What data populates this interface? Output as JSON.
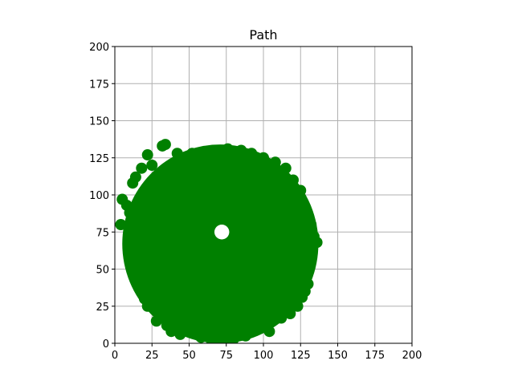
{
  "chart_data": {
    "type": "scatter",
    "title": "Path",
    "xlabel": "",
    "ylabel": "",
    "xlim": [
      0,
      200
    ],
    "ylim": [
      0,
      200
    ],
    "xticks": [
      "0",
      "25",
      "50",
      "75",
      "100",
      "125",
      "150",
      "175",
      "200"
    ],
    "yticks": [
      "0",
      "25",
      "50",
      "75",
      "100",
      "125",
      "150",
      "175",
      "200"
    ],
    "grid": true,
    "aspect": "equal",
    "series": [
      {
        "color": "#008000",
        "marker": "circle",
        "region": {
          "center": [
            71,
            67
          ],
          "rx": 66,
          "ry": 67,
          "hole_center": [
            72,
            75
          ],
          "hole_radius": 5
        },
        "points": [
          [
            4,
            80
          ],
          [
            5,
            97
          ],
          [
            8,
            93
          ],
          [
            10,
            88
          ],
          [
            14,
            112
          ],
          [
            12,
            108
          ],
          [
            15,
            66
          ],
          [
            12,
            48
          ],
          [
            18,
            118
          ],
          [
            20,
            30
          ],
          [
            22,
            25
          ],
          [
            22,
            127
          ],
          [
            25,
            120
          ],
          [
            28,
            15
          ],
          [
            32,
            133
          ],
          [
            34,
            134
          ],
          [
            35,
            12
          ],
          [
            38,
            8
          ],
          [
            42,
            128
          ],
          [
            44,
            6
          ],
          [
            48,
            125
          ],
          [
            52,
            128
          ],
          [
            55,
            9
          ],
          [
            58,
            4
          ],
          [
            62,
            127
          ],
          [
            65,
            2
          ],
          [
            70,
            129
          ],
          [
            72,
            3
          ],
          [
            76,
            131
          ],
          [
            80,
            3
          ],
          [
            85,
            130
          ],
          [
            88,
            5
          ],
          [
            92,
            128
          ],
          [
            95,
            12
          ],
          [
            100,
            125
          ],
          [
            104,
            8
          ],
          [
            108,
            122
          ],
          [
            112,
            17
          ],
          [
            115,
            118
          ],
          [
            118,
            20
          ],
          [
            120,
            110
          ],
          [
            123,
            25
          ],
          [
            125,
            103
          ],
          [
            126,
            31
          ],
          [
            128,
            92
          ],
          [
            130,
            40
          ],
          [
            132,
            80
          ],
          [
            134,
            72
          ],
          [
            136,
            68
          ],
          [
            132,
            58
          ],
          [
            130,
            50
          ],
          [
            128,
            35
          ],
          [
            78,
            120
          ],
          [
            60,
            100
          ],
          [
            40,
            90
          ],
          [
            30,
            60
          ],
          [
            45,
            40
          ],
          [
            60,
            30
          ],
          [
            90,
            25
          ],
          [
            105,
            45
          ],
          [
            110,
            70
          ],
          [
            100,
            95
          ],
          [
            85,
            105
          ],
          [
            55,
            70
          ],
          [
            65,
            55
          ],
          [
            80,
            50
          ],
          [
            95,
            60
          ],
          [
            50,
            110
          ],
          [
            35,
            100
          ],
          [
            25,
            45
          ],
          [
            40,
            20
          ],
          [
            75,
            15
          ],
          [
            110,
            30
          ],
          [
            120,
            60
          ],
          [
            115,
            85
          ],
          [
            90,
            115
          ],
          [
            30,
            75
          ],
          [
            100,
            110
          ],
          [
            18,
            95
          ],
          [
            62,
            85
          ]
        ]
      }
    ]
  }
}
